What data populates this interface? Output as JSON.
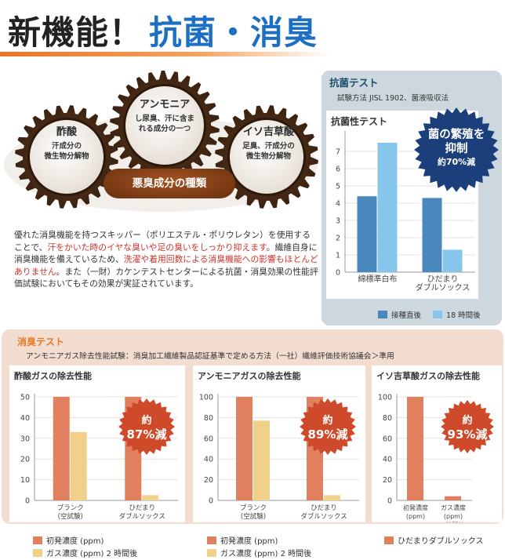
{
  "header": {
    "title_black": "新機能！",
    "title_blue": "抗菌・消臭"
  },
  "gears": [
    {
      "title": "酢酸",
      "sub1": "汗成分の",
      "sub2": "微生物分解物",
      "sub3": ""
    },
    {
      "title": "アンモニア",
      "sub1": "し尿臭、汗に含ま",
      "sub2": "れる成分の一つ",
      "sub3": ""
    },
    {
      "title": "イソ吉草酸",
      "sub1": "足臭、汗成分の",
      "sub2": "微生物分解物",
      "sub3": ""
    }
  ],
  "gear_center_label": "悪臭成分の種類",
  "body_text": {
    "p1": "優れた消臭機能を持つスキッパー（ポリエステル・ポリウレタン）を使用することで、",
    "p1_hl": "汗をかいた時のイヤな臭いや足の臭いをしっかり抑えます",
    "p2": "。繊維自身に消臭機能を備えているため、",
    "p2_hl": "洗濯や着用回数による消臭機能への影響もほとんどありません",
    "p3": "。また（一財）カケンテストセンターによる抗菌・消臭効果の性能評価試験においてもその効果が実証されています。"
  },
  "antibacterial": {
    "section_title": "抗菌テスト",
    "method": "試験方法 JISL 1902、菌液吸収法",
    "badge_line1": "菌の繁殖を",
    "badge_line2": "抑制",
    "badge_line3": "約70%減",
    "colors": {
      "series1": "#4a87bd",
      "series2": "#86c5ec",
      "badge": "#1b3f7a"
    }
  },
  "deodorant": {
    "section_title": "消臭テスト",
    "method": "アンモニアガス除去性能試験：消臭加工繊維製品認証基準で定める方法（一社）繊維評価技術協議会＞準用",
    "colors": {
      "initial": "#e0805f",
      "gas": "#f1d08a",
      "seal": "#cf4a2a"
    },
    "legend_initial": "初発濃度 (ppm)",
    "legend_gas": "ガス濃度 (ppm) 2 時間後",
    "legend_socks": "ひだまりダブルソックス"
  },
  "chart_data": [
    {
      "type": "bar",
      "title": "抗菌性テスト",
      "categories": [
        "綿標準白布",
        "ひだまり ダブルソックス"
      ],
      "series": [
        {
          "name": "接種直後",
          "values": [
            4.4,
            4.3
          ]
        },
        {
          "name": "18 時間後",
          "values": [
            7.5,
            1.3
          ]
        }
      ],
      "ylim": [
        0,
        8
      ],
      "yticks": [
        0,
        1,
        2,
        3,
        4,
        5,
        6,
        7
      ],
      "annotation": "菌の繁殖を抑制 約70%減"
    },
    {
      "type": "bar",
      "title": "酢酸ガスの除去性能",
      "categories": [
        "ブランク (空試験)",
        "ひだまり ダブルソックス"
      ],
      "series": [
        {
          "name": "初発濃度 (ppm)",
          "values": [
            50,
            50
          ]
        },
        {
          "name": "ガス濃度 (ppm) 2 時間後",
          "values": [
            33,
            2.5
          ]
        }
      ],
      "ylim": [
        0,
        50
      ],
      "yticks": [
        0,
        10,
        20,
        30,
        40,
        50
      ],
      "annotation": "約 87%減"
    },
    {
      "type": "bar",
      "title": "アンモニアガスの除去性能",
      "categories": [
        "ブランク (空試験)",
        "ひだまり ダブルソックス"
      ],
      "series": [
        {
          "name": "初発濃度 (ppm)",
          "values": [
            100,
            100
          ]
        },
        {
          "name": "ガス濃度 (ppm) 2 時間後",
          "values": [
            77,
            5
          ]
        }
      ],
      "ylim": [
        0,
        100
      ],
      "yticks": [
        0,
        20,
        40,
        60,
        80,
        100
      ],
      "annotation": "約 89%減"
    },
    {
      "type": "bar",
      "title": "イソ吉草酸ガスの除去性能",
      "categories": [
        "初発濃度 (ppm)",
        "ガス濃度 (ppm) 2時間後"
      ],
      "series": [
        {
          "name": "ひだまりダブルソックス",
          "values": [
            100,
            4
          ]
        }
      ],
      "ylim": [
        0,
        100
      ],
      "yticks": [
        0,
        20,
        40,
        60,
        80,
        100
      ],
      "annotation": "約 93%減"
    }
  ]
}
